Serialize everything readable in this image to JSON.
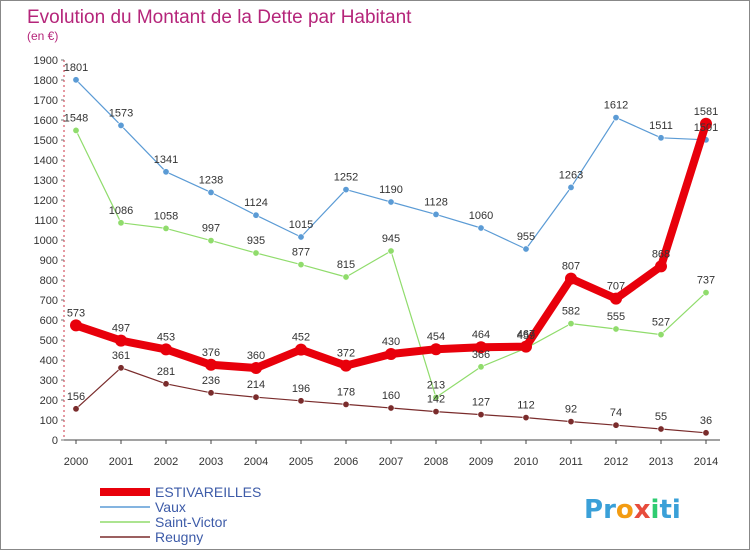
{
  "chart_data": {
    "type": "line",
    "title": "Evolution du Montant de la Dette par Habitant",
    "subtitle": "(en €)",
    "x": [
      "2000",
      "2001",
      "2002",
      "2003",
      "2004",
      "2005",
      "2006",
      "2007",
      "2008",
      "2009",
      "2010",
      "2011",
      "2012",
      "2013",
      "2014"
    ],
    "y_ticks": [
      "0",
      "100",
      "200",
      "300",
      "400",
      "500",
      "600",
      "700",
      "800",
      "900",
      "1000",
      "1100",
      "1200",
      "1300",
      "1400",
      "1500",
      "1600",
      "1700",
      "1800",
      "1900"
    ],
    "ylim": [
      0,
      1900
    ],
    "grid": false,
    "legend_position": "bottom-left",
    "series": [
      {
        "name": "ESTIVAREILLES",
        "color": "#e8000b",
        "values": [
          573,
          497,
          453,
          376,
          360,
          452,
          372,
          430,
          454,
          464,
          467,
          807,
          707,
          868,
          1581
        ],
        "labels": [
          "573",
          "497",
          "453",
          "376",
          "360",
          "452",
          "372",
          "430",
          "454",
          "464",
          "467",
          "807",
          "707",
          "868",
          "1581"
        ]
      },
      {
        "name": "Vaux",
        "color": "#5b9bd5",
        "values": [
          1801,
          1573,
          1341,
          1238,
          1124,
          1015,
          1252,
          1190,
          1128,
          1060,
          955,
          1263,
          1612,
          1511,
          1501
        ],
        "labels": [
          "1801",
          "1573",
          "1341",
          "1238",
          "1124",
          "1015",
          "1252",
          "1190",
          "1128",
          "1060",
          "955",
          "1263",
          "1612",
          "1511",
          "1501"
        ]
      },
      {
        "name": "Saint-Victor",
        "color": "#90dc6c",
        "values": [
          1548,
          1086,
          1058,
          997,
          935,
          877,
          815,
          945,
          213,
          366,
          459,
          582,
          555,
          527,
          737
        ],
        "labels": [
          "1548",
          "1086",
          "1058",
          "997",
          "935",
          "877",
          "815",
          "945",
          "213",
          "366",
          "459",
          "582",
          "555",
          "527",
          "737"
        ]
      },
      {
        "name": "Reugny",
        "color": "#7a2c2c",
        "values": [
          156,
          361,
          281,
          236,
          214,
          196,
          178,
          160,
          142,
          127,
          112,
          92,
          74,
          55,
          36
        ],
        "labels": [
          "156",
          "361",
          "281",
          "236",
          "214",
          "196",
          "178",
          "160",
          "142",
          "127",
          "112",
          "92",
          "74",
          "55",
          "36"
        ]
      }
    ]
  },
  "logo": {
    "text": "Proxiti",
    "letters": [
      "P",
      "r",
      "o",
      "x",
      "i",
      "t",
      "i"
    ],
    "colors": [
      "#3aa0d8",
      "#3aa0d8",
      "#f39c12",
      "#e74c3c",
      "#2ecc71",
      "#3aa0d8",
      "#3aa0d8"
    ]
  }
}
